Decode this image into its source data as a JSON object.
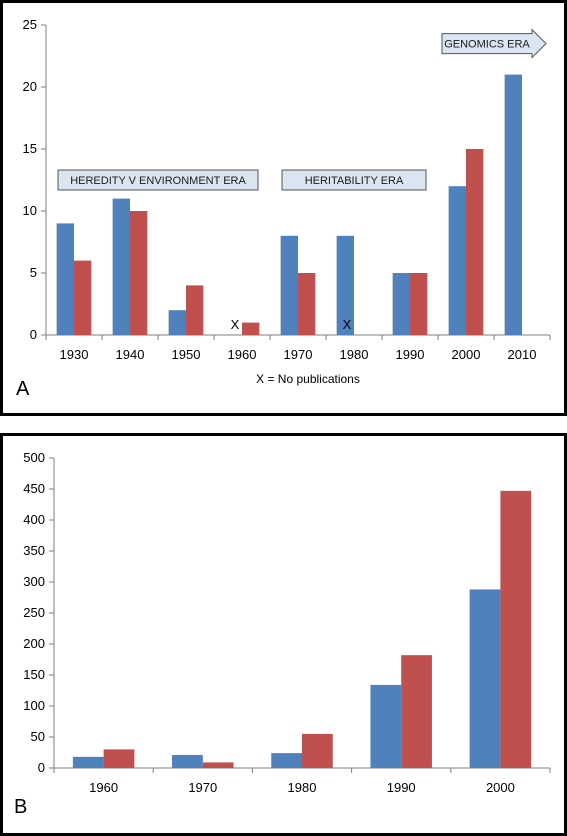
{
  "chart_data": [
    {
      "type": "bar",
      "panel_label": "A",
      "categories": [
        "1930",
        "1940",
        "1950",
        "1960",
        "1970",
        "1980",
        "1990",
        "2000",
        "2010"
      ],
      "series": [
        {
          "values": [
            9,
            11,
            2,
            0,
            8,
            8,
            5,
            12,
            21
          ]
        },
        {
          "values": [
            6,
            10,
            4,
            1,
            5,
            0,
            5,
            15,
            0
          ]
        }
      ],
      "ylim": [
        0,
        25
      ],
      "yticks": [
        0,
        5,
        10,
        15,
        20,
        25
      ],
      "grid": false,
      "colors": {
        "series1": "#4f81bd",
        "series2": "#c0504d"
      },
      "markers": [
        {
          "category": "1960",
          "text": "X"
        },
        {
          "category": "1980",
          "text": "X"
        }
      ],
      "note": "X = No publications",
      "eras": [
        {
          "label": "HEREDITY V  ENVIRONMENT ERA",
          "from": "1930",
          "to": "1960",
          "value": 12.5
        },
        {
          "label": "HERITABILITY ERA",
          "from": "1970",
          "to": "1990",
          "value": 12.5
        },
        {
          "label": "GENOMICS ERA",
          "from": "2000",
          "to": "2010",
          "value": 23.5,
          "shape": "arrow"
        }
      ]
    },
    {
      "type": "bar",
      "panel_label": "B",
      "categories": [
        "1960",
        "1970",
        "1980",
        "1990",
        "2000"
      ],
      "series": [
        {
          "values": [
            18,
            21,
            24,
            134,
            288
          ]
        },
        {
          "values": [
            30,
            9,
            55,
            182,
            447
          ]
        }
      ],
      "ylim": [
        0,
        500
      ],
      "yticks": [
        0,
        50,
        100,
        150,
        200,
        250,
        300,
        350,
        400,
        450,
        500
      ],
      "grid": false,
      "colors": {
        "series1": "#4f81bd",
        "series2": "#c0504d"
      }
    }
  ]
}
